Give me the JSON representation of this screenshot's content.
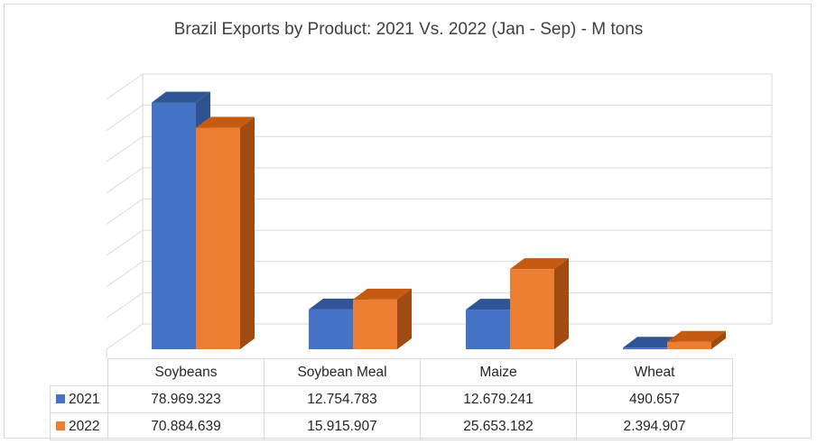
{
  "colors": {
    "series_2021": "#4472c4",
    "series_2021_top": "#2f5597",
    "series_2021_side": "#2e5291",
    "series_2022": "#ed7d31",
    "series_2022_top": "#c55a11",
    "series_2022_side": "#a04b12",
    "grid": "#d9d9d9"
  },
  "chart_data": {
    "type": "bar",
    "title": "Brazil Exports by Product: 2021 Vs. 2022 (Jan - Sep) - M tons",
    "categories": [
      "Soybeans",
      "Soybean Meal",
      "Maize",
      "Wheat"
    ],
    "series": [
      {
        "name": "2021",
        "values": [
          78969323,
          12754783,
          12679241,
          490657
        ]
      },
      {
        "name": "2022",
        "values": [
          70884639,
          15915907,
          25653182,
          2394907
        ]
      }
    ],
    "table_values": [
      [
        "78.969.323",
        "12.754.783",
        "12.679.241",
        "490.657"
      ],
      [
        "70.884.639",
        "15.915.907",
        "25.653.182",
        "2.394.907"
      ]
    ],
    "ylim": [
      0,
      80000000
    ],
    "grid": true,
    "style": "3d-clustered-column",
    "legend": "data-table"
  }
}
